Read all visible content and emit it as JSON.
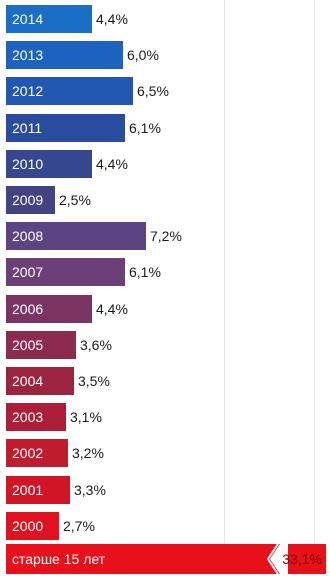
{
  "chart_data": {
    "type": "bar",
    "orientation": "horizontal",
    "categories": [
      "2014",
      "2013",
      "2012",
      "2011",
      "2010",
      "2009",
      "2008",
      "2007",
      "2006",
      "2005",
      "2004",
      "2003",
      "2002",
      "2001",
      "2000"
    ],
    "values": [
      4.4,
      6.0,
      6.5,
      6.1,
      4.4,
      2.5,
      7.2,
      6.1,
      4.4,
      3.6,
      3.5,
      3.1,
      3.2,
      3.3,
      2.7
    ],
    "value_labels": [
      "4,4%",
      "6,0%",
      "6,5%",
      "6,1%",
      "4,4%",
      "2,5%",
      "7,2%",
      "6,1%",
      "4,4%",
      "3,6%",
      "3,5%",
      "3,1%",
      "3,2%",
      "3,3%",
      "2,7%"
    ],
    "colors": [
      "#1a6fc4",
      "#1b63bf",
      "#2157b0",
      "#2a4c9e",
      "#34478f",
      "#434384",
      "#5c4382",
      "#6c3f78",
      "#7a3463",
      "#8c2b4e",
      "#9b2440",
      "#ad1f38",
      "#bf1c2e",
      "#d01626",
      "#e0121f"
    ],
    "xlim": [
      0,
      8
    ],
    "title": "",
    "xlabel": "",
    "ylabel": "",
    "grid": true,
    "total": {
      "label": "старше 15 лет",
      "value": 33.1,
      "value_label": "33,1%",
      "color": "#e8101a"
    }
  }
}
